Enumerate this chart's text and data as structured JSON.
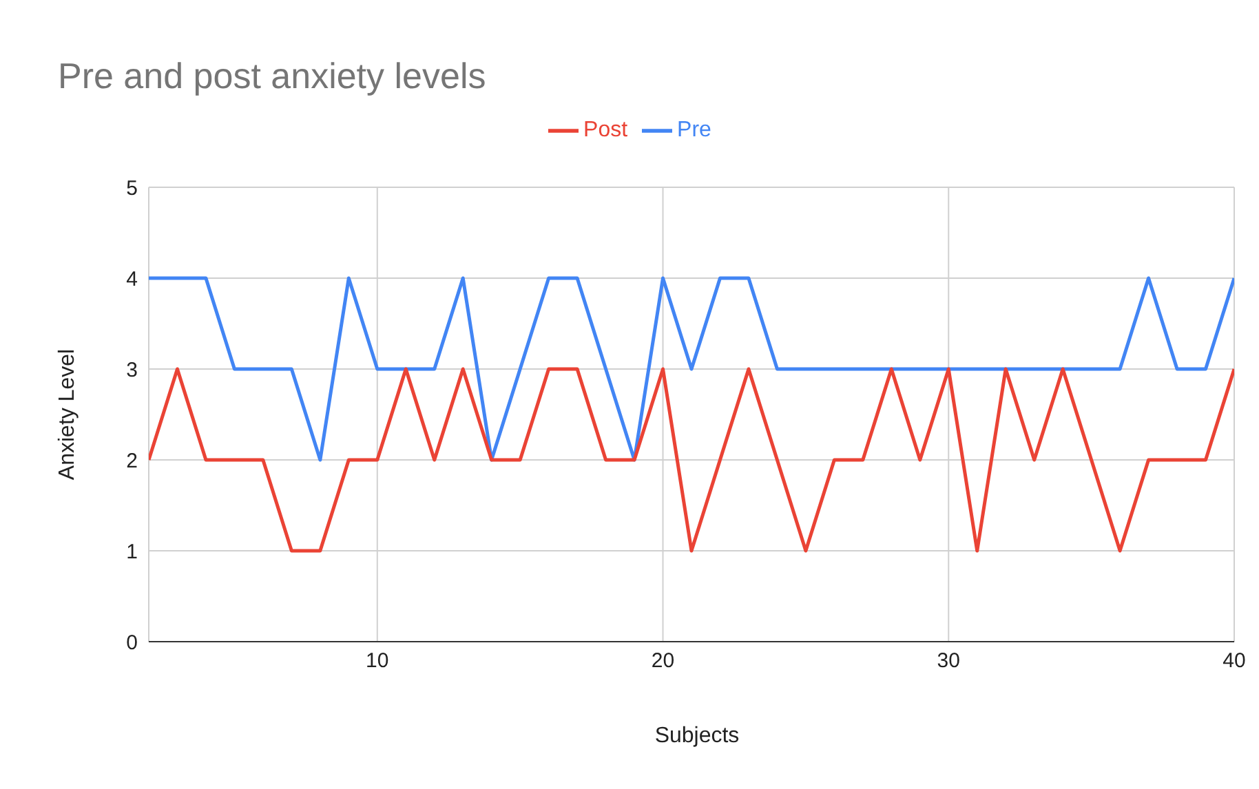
{
  "chart_data": {
    "type": "line",
    "title": "Pre and post anxiety levels",
    "xlabel": "Subjects",
    "ylabel": "Anxiety Level",
    "x": [
      2,
      3,
      4,
      5,
      6,
      7,
      8,
      9,
      10,
      11,
      12,
      13,
      14,
      15,
      16,
      17,
      18,
      19,
      20,
      21,
      22,
      23,
      24,
      25,
      26,
      27,
      28,
      29,
      30,
      31,
      32,
      33,
      34,
      35,
      36,
      37,
      38,
      39,
      40
    ],
    "series": [
      {
        "name": "Pre",
        "color": "#4285f4",
        "values": [
          4,
          4,
          4,
          3,
          3,
          3,
          2,
          4,
          3,
          3,
          3,
          4,
          2,
          3,
          4,
          4,
          3,
          2,
          4,
          3,
          4,
          4,
          3,
          3,
          3,
          3,
          3,
          3,
          3,
          3,
          3,
          3,
          3,
          3,
          3,
          4,
          3,
          3,
          4
        ]
      },
      {
        "name": "Post",
        "color": "#ea4335",
        "values": [
          2,
          3,
          2,
          2,
          2,
          1,
          1,
          2,
          2,
          3,
          2,
          3,
          2,
          2,
          3,
          3,
          2,
          2,
          3,
          1,
          2,
          3,
          2,
          1,
          2,
          2,
          3,
          2,
          3,
          1,
          3,
          2,
          3,
          2,
          1,
          2,
          2,
          2,
          3
        ]
      }
    ],
    "xlim": [
      2,
      40
    ],
    "xticks": [
      10,
      20,
      30,
      40
    ],
    "ylim": [
      0,
      5
    ],
    "yticks": [
      0,
      1,
      2,
      3,
      4,
      5
    ],
    "grid": true,
    "legend": "top",
    "marker": "none",
    "line_style": "solid"
  }
}
